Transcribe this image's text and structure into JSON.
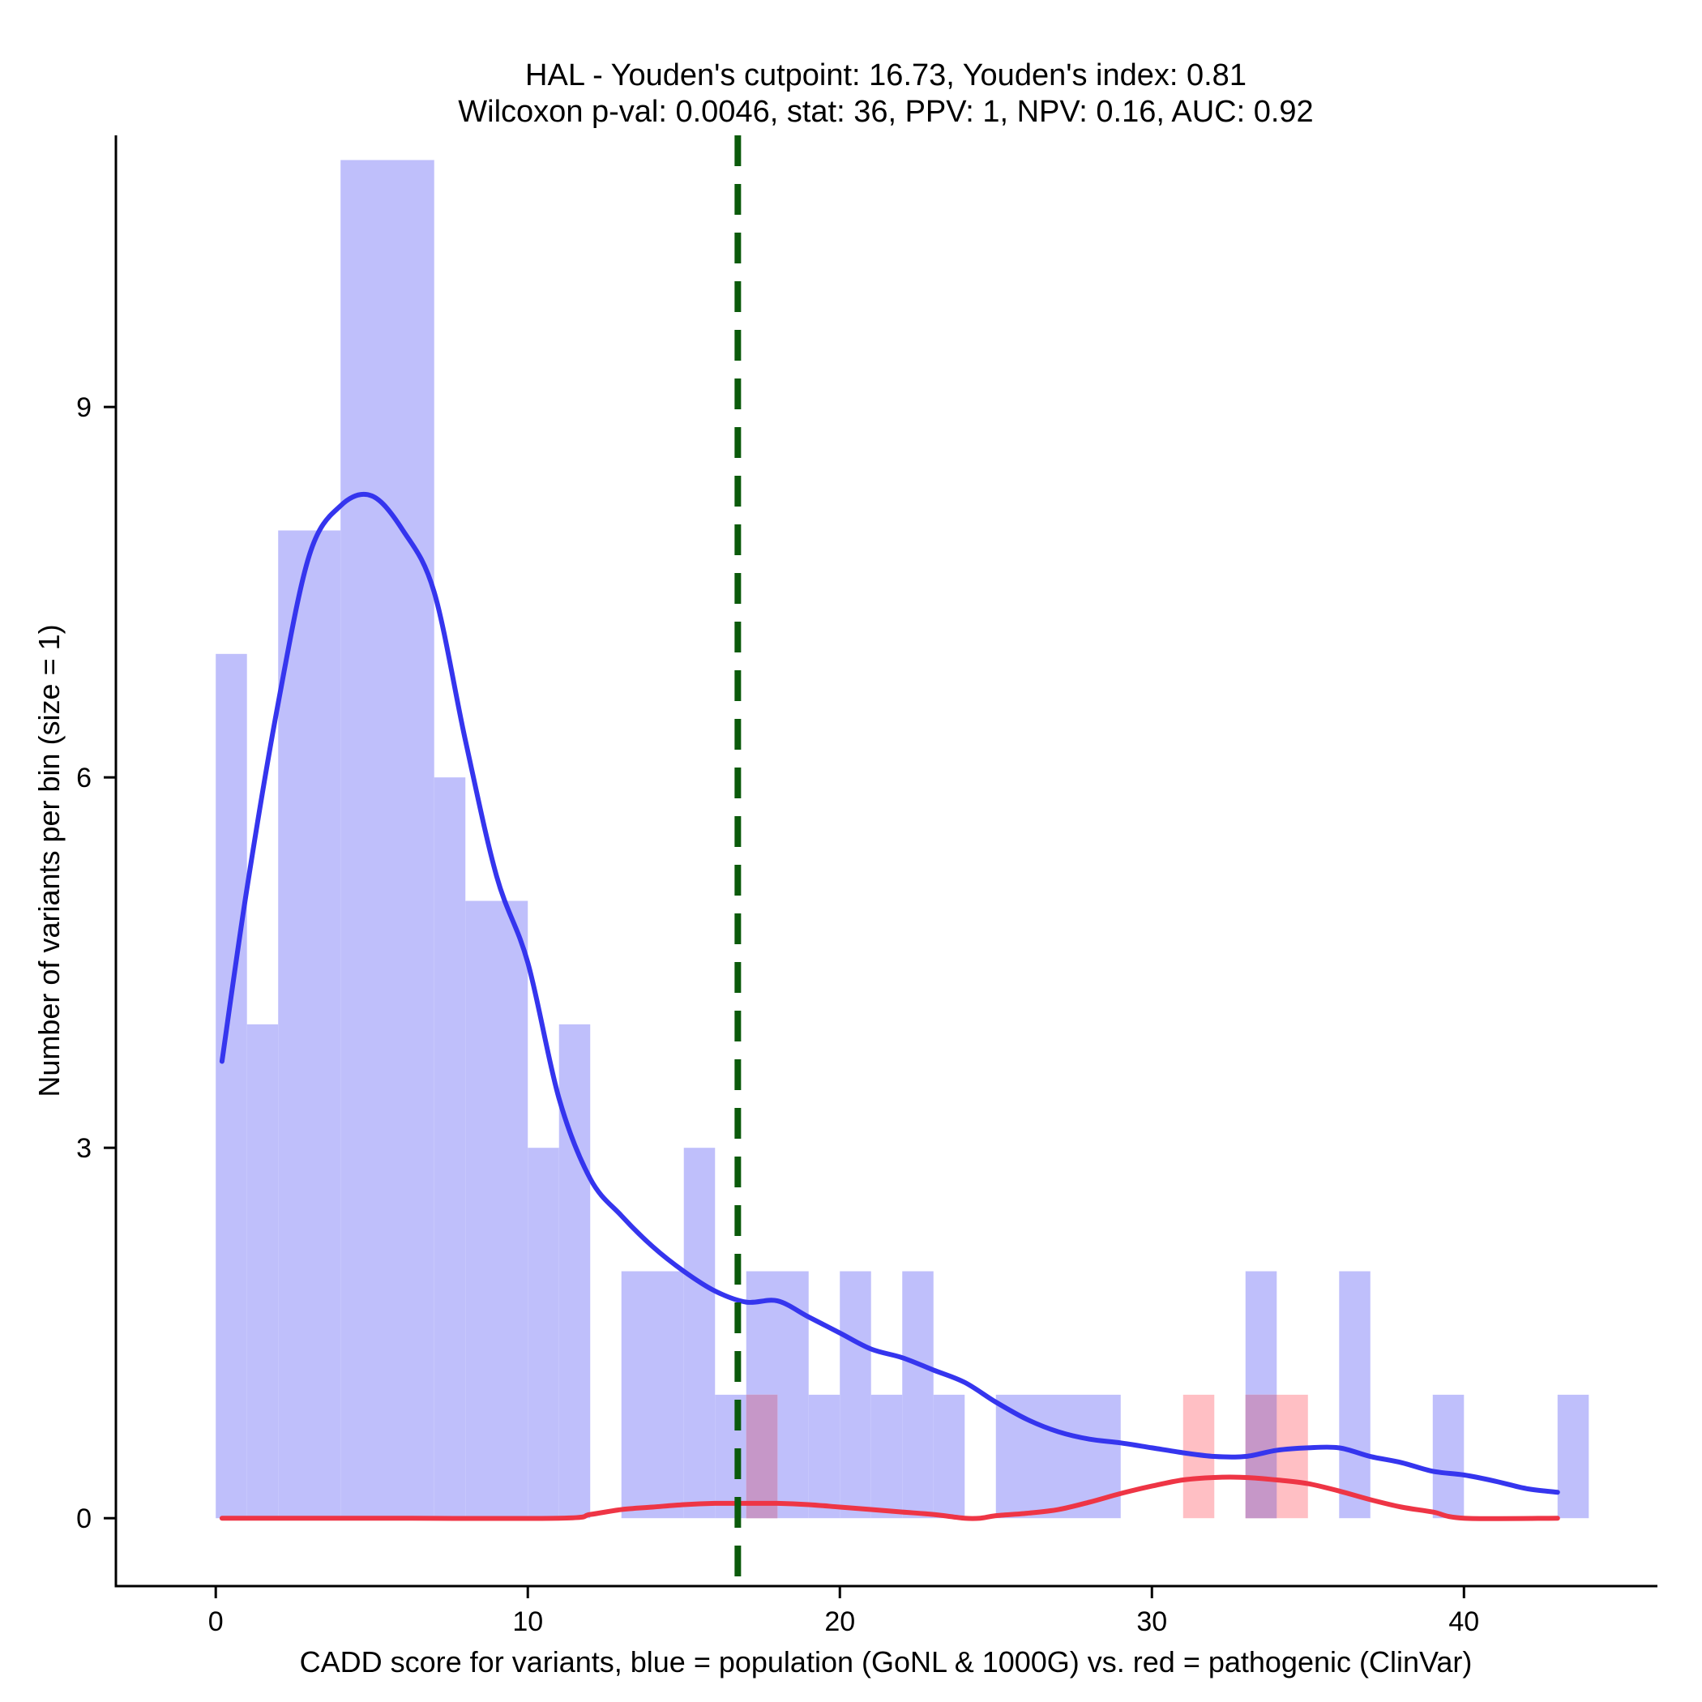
{
  "chart_data": {
    "type": "histogram",
    "title_line1": "HAL - Youden's cutpoint: 16.73, Youden's index: 0.81",
    "title_line2": "Wilcoxon p-val: 0.0046, stat: 36, PPV: 1, NPV: 0.16, AUC: 0.92",
    "xlabel": "CADD score for variants, blue = population (GoNL & 1000G) vs. red = pathogenic (ClinVar)",
    "ylabel": "Number of variants per bin (size = 1)",
    "xlim": [
      -3.2,
      46.2
    ],
    "ylim": [
      -0.55,
      11.2
    ],
    "x_ticks": [
      {
        "value": 0,
        "label": "0"
      },
      {
        "value": 10,
        "label": "10"
      },
      {
        "value": 20,
        "label": "20"
      },
      {
        "value": 30,
        "label": "30"
      },
      {
        "value": 40,
        "label": "40"
      }
    ],
    "y_ticks": [
      {
        "value": 0,
        "label": "0"
      },
      {
        "value": 3,
        "label": "3"
      },
      {
        "value": 6,
        "label": "6"
      },
      {
        "value": 9,
        "label": "9"
      }
    ],
    "cutpoint": 16.73,
    "colors": {
      "population_bar": "#bfbffb",
      "pathogenic_bar": "#ffbfc4",
      "overlap_bar": "#c697c8",
      "population_line": "#3535ee",
      "pathogenic_line": "#ee3545",
      "cutpoint_line": "#0b5a0b"
    },
    "series": [
      {
        "name": "population (GoNL & 1000G)",
        "bins": [
          {
            "x0": 0,
            "x1": 1,
            "count": 7
          },
          {
            "x0": 1,
            "x1": 2,
            "count": 4
          },
          {
            "x0": 2,
            "x1": 4,
            "count": 8
          },
          {
            "x0": 4,
            "x1": 7,
            "count": 11
          },
          {
            "x0": 7,
            "x1": 8,
            "count": 6
          },
          {
            "x0": 8,
            "x1": 10,
            "count": 5
          },
          {
            "x0": 10,
            "x1": 11,
            "count": 3
          },
          {
            "x0": 11,
            "x1": 12,
            "count": 4
          },
          {
            "x0": 13,
            "x1": 15,
            "count": 2
          },
          {
            "x0": 15,
            "x1": 16,
            "count": 3
          },
          {
            "x0": 16,
            "x1": 17,
            "count": 1
          },
          {
            "x0": 17,
            "x1": 19,
            "count": 2
          },
          {
            "x0": 19,
            "x1": 20,
            "count": 1
          },
          {
            "x0": 20,
            "x1": 21,
            "count": 2
          },
          {
            "x0": 21,
            "x1": 22,
            "count": 1
          },
          {
            "x0": 22,
            "x1": 23,
            "count": 2
          },
          {
            "x0": 23,
            "x1": 24,
            "count": 1
          },
          {
            "x0": 25,
            "x1": 29,
            "count": 1
          },
          {
            "x0": 33,
            "x1": 34,
            "count": 2
          },
          {
            "x0": 36,
            "x1": 37,
            "count": 2
          },
          {
            "x0": 39,
            "x1": 40,
            "count": 1
          },
          {
            "x0": 43,
            "x1": 44,
            "count": 1
          }
        ],
        "density_curve": [
          [
            0.2,
            3.7
          ],
          [
            1,
            5.1
          ],
          [
            2,
            6.6
          ],
          [
            3,
            7.8
          ],
          [
            4,
            8.2
          ],
          [
            5,
            8.28
          ],
          [
            6,
            8.0
          ],
          [
            7,
            7.5
          ],
          [
            8,
            6.3
          ],
          [
            9,
            5.2
          ],
          [
            10,
            4.5
          ],
          [
            11,
            3.4
          ],
          [
            12,
            2.75
          ],
          [
            13,
            2.45
          ],
          [
            14,
            2.2
          ],
          [
            15,
            2.0
          ],
          [
            16,
            1.84
          ],
          [
            17,
            1.75
          ],
          [
            18,
            1.76
          ],
          [
            19,
            1.63
          ],
          [
            20,
            1.5
          ],
          [
            21,
            1.37
          ],
          [
            22,
            1.3
          ],
          [
            23,
            1.2
          ],
          [
            24,
            1.1
          ],
          [
            25,
            0.94
          ],
          [
            26,
            0.8
          ],
          [
            27,
            0.7
          ],
          [
            28,
            0.64
          ],
          [
            29,
            0.61
          ],
          [
            30,
            0.57
          ],
          [
            31,
            0.53
          ],
          [
            32,
            0.5
          ],
          [
            33,
            0.5
          ],
          [
            34,
            0.55
          ],
          [
            35,
            0.57
          ],
          [
            36,
            0.57
          ],
          [
            37,
            0.5
          ],
          [
            38,
            0.45
          ],
          [
            39,
            0.38
          ],
          [
            40,
            0.35
          ],
          [
            41,
            0.3
          ],
          [
            42,
            0.24
          ],
          [
            43,
            0.21
          ]
        ]
      },
      {
        "name": "pathogenic (ClinVar)",
        "bins": [
          {
            "x0": 17,
            "x1": 18,
            "count": 1
          },
          {
            "x0": 31,
            "x1": 32,
            "count": 1
          },
          {
            "x0": 33,
            "x1": 35,
            "count": 1
          }
        ],
        "density_curve": [
          [
            0.2,
            0
          ],
          [
            5,
            0
          ],
          [
            11,
            0
          ],
          [
            12,
            0.03
          ],
          [
            13,
            0.07
          ],
          [
            14,
            0.09
          ],
          [
            15,
            0.11
          ],
          [
            16,
            0.12
          ],
          [
            17,
            0.12
          ],
          [
            18,
            0.12
          ],
          [
            19,
            0.11
          ],
          [
            20,
            0.09
          ],
          [
            21,
            0.07
          ],
          [
            22,
            0.05
          ],
          [
            23,
            0.03
          ],
          [
            24,
            0.0
          ],
          [
            24.5,
            0.0
          ],
          [
            25,
            0.02
          ],
          [
            26,
            0.04
          ],
          [
            27,
            0.07
          ],
          [
            28,
            0.13
          ],
          [
            29,
            0.2
          ],
          [
            30,
            0.26
          ],
          [
            31,
            0.31
          ],
          [
            32,
            0.33
          ],
          [
            33,
            0.33
          ],
          [
            34,
            0.31
          ],
          [
            35,
            0.28
          ],
          [
            36,
            0.22
          ],
          [
            37,
            0.15
          ],
          [
            38,
            0.09
          ],
          [
            39,
            0.05
          ],
          [
            40,
            0.0
          ],
          [
            43,
            0.0
          ]
        ]
      }
    ]
  }
}
